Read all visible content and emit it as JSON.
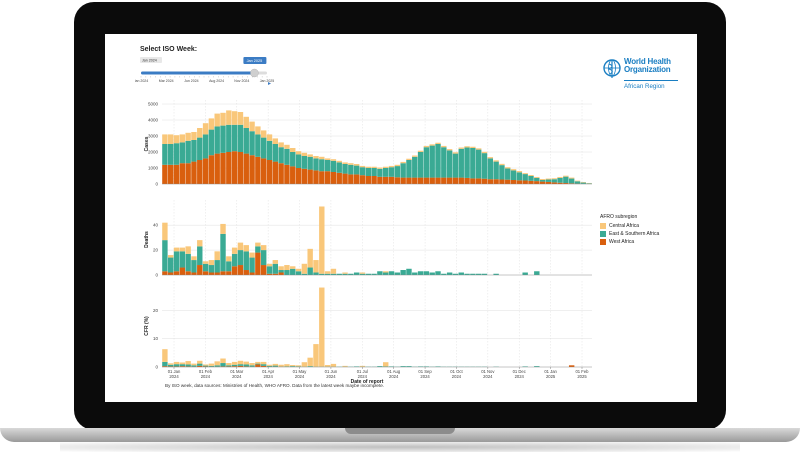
{
  "slider": {
    "title": "Select ISO Week:",
    "min_label": "Jan 2024",
    "value_label": "Jan 2025",
    "ticks": [
      "Jan 2024",
      "Mar 2024",
      "Jun 2024",
      "Aug 2024",
      "Nov 2024",
      "Jan 2025"
    ],
    "progress": 0.9
  },
  "logo": {
    "name_line1": "World Health",
    "name_line2": "Organization",
    "region": "African Region"
  },
  "legend": {
    "title": "AFRO subregion",
    "items": [
      "Central Africa",
      "East & Southern Africa",
      "West Africa"
    ]
  },
  "colors": {
    "Central Africa": "#f9c77a",
    "East & Southern Africa": "#3aaa94",
    "West Africa": "#d95f0e",
    "grid": "#d8d8d8"
  },
  "source_note": "By ISO week, data sources: Ministries of Health, WHO AFRO. Data from the latest week maybe incomplete.",
  "chart_data": [
    {
      "type": "bar",
      "stacked": true,
      "ylabel": "Cases",
      "ylim": [
        0,
        5000
      ],
      "yticks": [
        "0",
        "1000",
        "2000",
        "3000",
        "4000",
        "5000"
      ],
      "series": [
        {
          "name": "West Africa",
          "values": [
            1200,
            1200,
            1200,
            1300,
            1300,
            1400,
            1500,
            1600,
            1800,
            1900,
            1950,
            2000,
            2050,
            2000,
            1900,
            1800,
            1700,
            1600,
            1500,
            1400,
            1300,
            1200,
            1100,
            1000,
            950,
            900,
            850,
            800,
            800,
            750,
            700,
            650,
            600,
            600,
            550,
            500,
            500,
            450,
            450,
            450,
            420,
            400,
            400,
            400,
            400,
            400,
            400,
            400,
            400,
            400,
            400,
            400,
            380,
            350,
            350,
            330,
            300,
            300,
            280,
            270,
            250,
            230,
            220,
            200,
            180,
            150,
            130,
            100,
            80,
            60,
            40,
            20,
            10,
            5
          ]
        },
        {
          "name": "East & Southern Africa",
          "values": [
            1300,
            1300,
            1350,
            1300,
            1400,
            1350,
            1400,
            1500,
            1600,
            1700,
            1700,
            1700,
            1650,
            1700,
            1600,
            1500,
            1400,
            1300,
            1200,
            1100,
            1000,
            1000,
            900,
            850,
            800,
            800,
            750,
            750,
            700,
            700,
            650,
            600,
            600,
            550,
            500,
            500,
            500,
            500,
            550,
            600,
            700,
            900,
            1100,
            1300,
            1600,
            1900,
            2000,
            2100,
            1900,
            1700,
            1500,
            1800,
            1900,
            1900,
            1800,
            1600,
            1300,
            1100,
            900,
            700,
            600,
            500,
            400,
            300,
            200,
            100,
            150,
            200,
            300,
            400,
            300,
            150,
            80,
            40
          ]
        },
        {
          "name": "Central Africa",
          "values": [
            600,
            600,
            500,
            500,
            500,
            500,
            600,
            700,
            700,
            800,
            800,
            900,
            850,
            800,
            700,
            600,
            500,
            450,
            400,
            350,
            300,
            250,
            250,
            200,
            200,
            150,
            150,
            150,
            100,
            100,
            100,
            100,
            100,
            100,
            80,
            80,
            80,
            80,
            80,
            80,
            80,
            80,
            80,
            80,
            80,
            80,
            80,
            80,
            80,
            80,
            80,
            80,
            80,
            80,
            80,
            80,
            80,
            80,
            80,
            80,
            80,
            80,
            60,
            60,
            60,
            60,
            60,
            60,
            60,
            60,
            60,
            40,
            30,
            20
          ]
        }
      ]
    },
    {
      "type": "bar",
      "stacked": true,
      "ylabel": "Deaths",
      "ylim": [
        0,
        57
      ],
      "yticks": [
        "0",
        "20",
        "40"
      ],
      "series": [
        {
          "name": "West Africa",
          "values": [
            3,
            2,
            3,
            6,
            3,
            2,
            8,
            3,
            2,
            2,
            3,
            3,
            7,
            8,
            4,
            2,
            18,
            8,
            1,
            1,
            2,
            0,
            0,
            0,
            0,
            0,
            0,
            0,
            0,
            0,
            0,
            0,
            0,
            0,
            0,
            0,
            0,
            0,
            0,
            0,
            0,
            0,
            0,
            0,
            0,
            0,
            0,
            0,
            0,
            0,
            0,
            0,
            0,
            0,
            0,
            0,
            0,
            0,
            0,
            0,
            0,
            0,
            0,
            0,
            0,
            0,
            0,
            0,
            0,
            0,
            0,
            0,
            0,
            0
          ]
        },
        {
          "name": "East & Southern Africa",
          "values": [
            25,
            12,
            16,
            13,
            14,
            10,
            15,
            6,
            6,
            10,
            30,
            8,
            10,
            12,
            15,
            12,
            5,
            12,
            6,
            8,
            2,
            4,
            5,
            3,
            1,
            6,
            2,
            1,
            1,
            1,
            1,
            1,
            1,
            2,
            1,
            1,
            1,
            3,
            2,
            3,
            2,
            4,
            5,
            2,
            3,
            3,
            2,
            3,
            1,
            2,
            1,
            2,
            1,
            1,
            1,
            1,
            0,
            1,
            0,
            0,
            0,
            0,
            2,
            0,
            3,
            0,
            0,
            0,
            0,
            0,
            0,
            0,
            0,
            0
          ]
        },
        {
          "name": "Central Africa",
          "values": [
            14,
            2,
            3,
            3,
            6,
            3,
            5,
            2,
            4,
            7,
            8,
            4,
            5,
            6,
            5,
            4,
            3,
            4,
            2,
            3,
            3,
            4,
            2,
            2,
            8,
            15,
            10,
            54,
            2,
            4,
            0,
            1,
            0,
            0,
            1,
            0,
            0,
            0,
            1,
            0,
            0,
            0,
            0,
            0,
            0,
            0,
            0,
            0,
            0,
            0,
            0,
            0,
            0,
            0,
            0,
            0,
            0,
            0,
            0,
            0,
            0,
            0,
            0,
            0,
            0,
            0,
            0,
            0,
            0,
            0,
            0,
            0,
            0,
            0
          ]
        }
      ]
    },
    {
      "type": "bar",
      "stacked": true,
      "ylabel": "CFR (%)",
      "ylim": [
        0,
        29
      ],
      "yticks": [
        "0",
        "10",
        "20"
      ],
      "series": [
        {
          "name": "West Africa",
          "values": [
            0.3,
            0.2,
            0.2,
            0.3,
            0.2,
            0.1,
            0.4,
            0.2,
            0.1,
            0.1,
            0.2,
            0.2,
            0.3,
            0.4,
            0.2,
            0.1,
            0.9,
            0.4,
            0.1,
            0.1,
            0.1,
            0,
            0,
            0,
            0,
            0,
            0,
            0,
            0,
            0,
            0,
            0,
            0,
            0,
            0,
            0,
            0,
            0,
            0,
            0,
            0,
            0,
            0,
            0,
            0,
            0,
            0,
            0,
            0,
            0,
            0,
            0,
            0,
            0,
            0,
            0,
            0,
            0,
            0,
            0,
            0,
            0,
            0,
            0,
            0,
            0,
            0,
            0,
            0,
            0,
            0.6,
            0,
            0,
            0
          ]
        },
        {
          "name": "East & Southern Africa",
          "values": [
            1.5,
            0.6,
            0.8,
            0.7,
            0.7,
            0.5,
            0.8,
            0.3,
            0.3,
            0.5,
            1.2,
            0.4,
            0.5,
            0.6,
            0.7,
            0.5,
            0.3,
            0.6,
            0.3,
            0.4,
            0.1,
            0.2,
            0.3,
            0.2,
            0.1,
            0.3,
            0.1,
            0.1,
            0.1,
            0.1,
            0.1,
            0.1,
            0.1,
            0.2,
            0.1,
            0.1,
            0.1,
            0.3,
            0.2,
            0.2,
            0.1,
            0.3,
            0.3,
            0.1,
            0.2,
            0.2,
            0.1,
            0.2,
            0.1,
            0.1,
            0.1,
            0.1,
            0.1,
            0.1,
            0.1,
            0.1,
            0,
            0.1,
            0,
            0,
            0,
            0,
            0.2,
            0,
            0.3,
            0,
            0,
            0,
            0,
            0,
            0,
            0,
            0,
            0
          ]
        },
        {
          "name": "Central Africa",
          "values": [
            4.5,
            0.5,
            0.8,
            0.6,
            1.2,
            0.6,
            1.0,
            0.4,
            0.8,
            1.4,
            1.6,
            0.8,
            1.0,
            1.2,
            1.0,
            0.8,
            0.6,
            0.8,
            0.4,
            0.6,
            0.6,
            0.8,
            0.4,
            0.4,
            1.6,
            3,
            8,
            28,
            0.6,
            1,
            0,
            0.3,
            0,
            0,
            0.3,
            0,
            0,
            0,
            1.5,
            0,
            0,
            0,
            0,
            0,
            0,
            0,
            0,
            0,
            0,
            0,
            0,
            0,
            0,
            0,
            0,
            0,
            0,
            0,
            0,
            0,
            0,
            0,
            0,
            0,
            0,
            0,
            0,
            0,
            0,
            0,
            0,
            0,
            0,
            0
          ]
        }
      ]
    }
  ],
  "x_axis": {
    "title": "Date of report",
    "ticks": [
      {
        "l1": "01 Jan",
        "l2": "2024"
      },
      {
        "l1": "01 Feb",
        "l2": "2024"
      },
      {
        "l1": "01 Mar",
        "l2": "2024"
      },
      {
        "l1": "01 Apr",
        "l2": "2024"
      },
      {
        "l1": "01 May",
        "l2": "2024"
      },
      {
        "l1": "01 Jun",
        "l2": "2024"
      },
      {
        "l1": "01 Jul",
        "l2": "2024"
      },
      {
        "l1": "01 Aug",
        "l2": "2024"
      },
      {
        "l1": "01 Sep",
        "l2": "2024"
      },
      {
        "l1": "01 Oct",
        "l2": "2024"
      },
      {
        "l1": "01 Nov",
        "l2": "2024"
      },
      {
        "l1": "01 Dec",
        "l2": "2024"
      },
      {
        "l1": "01 Jan",
        "l2": "2025"
      },
      {
        "l1": "01 Feb",
        "l2": "2025"
      }
    ]
  }
}
